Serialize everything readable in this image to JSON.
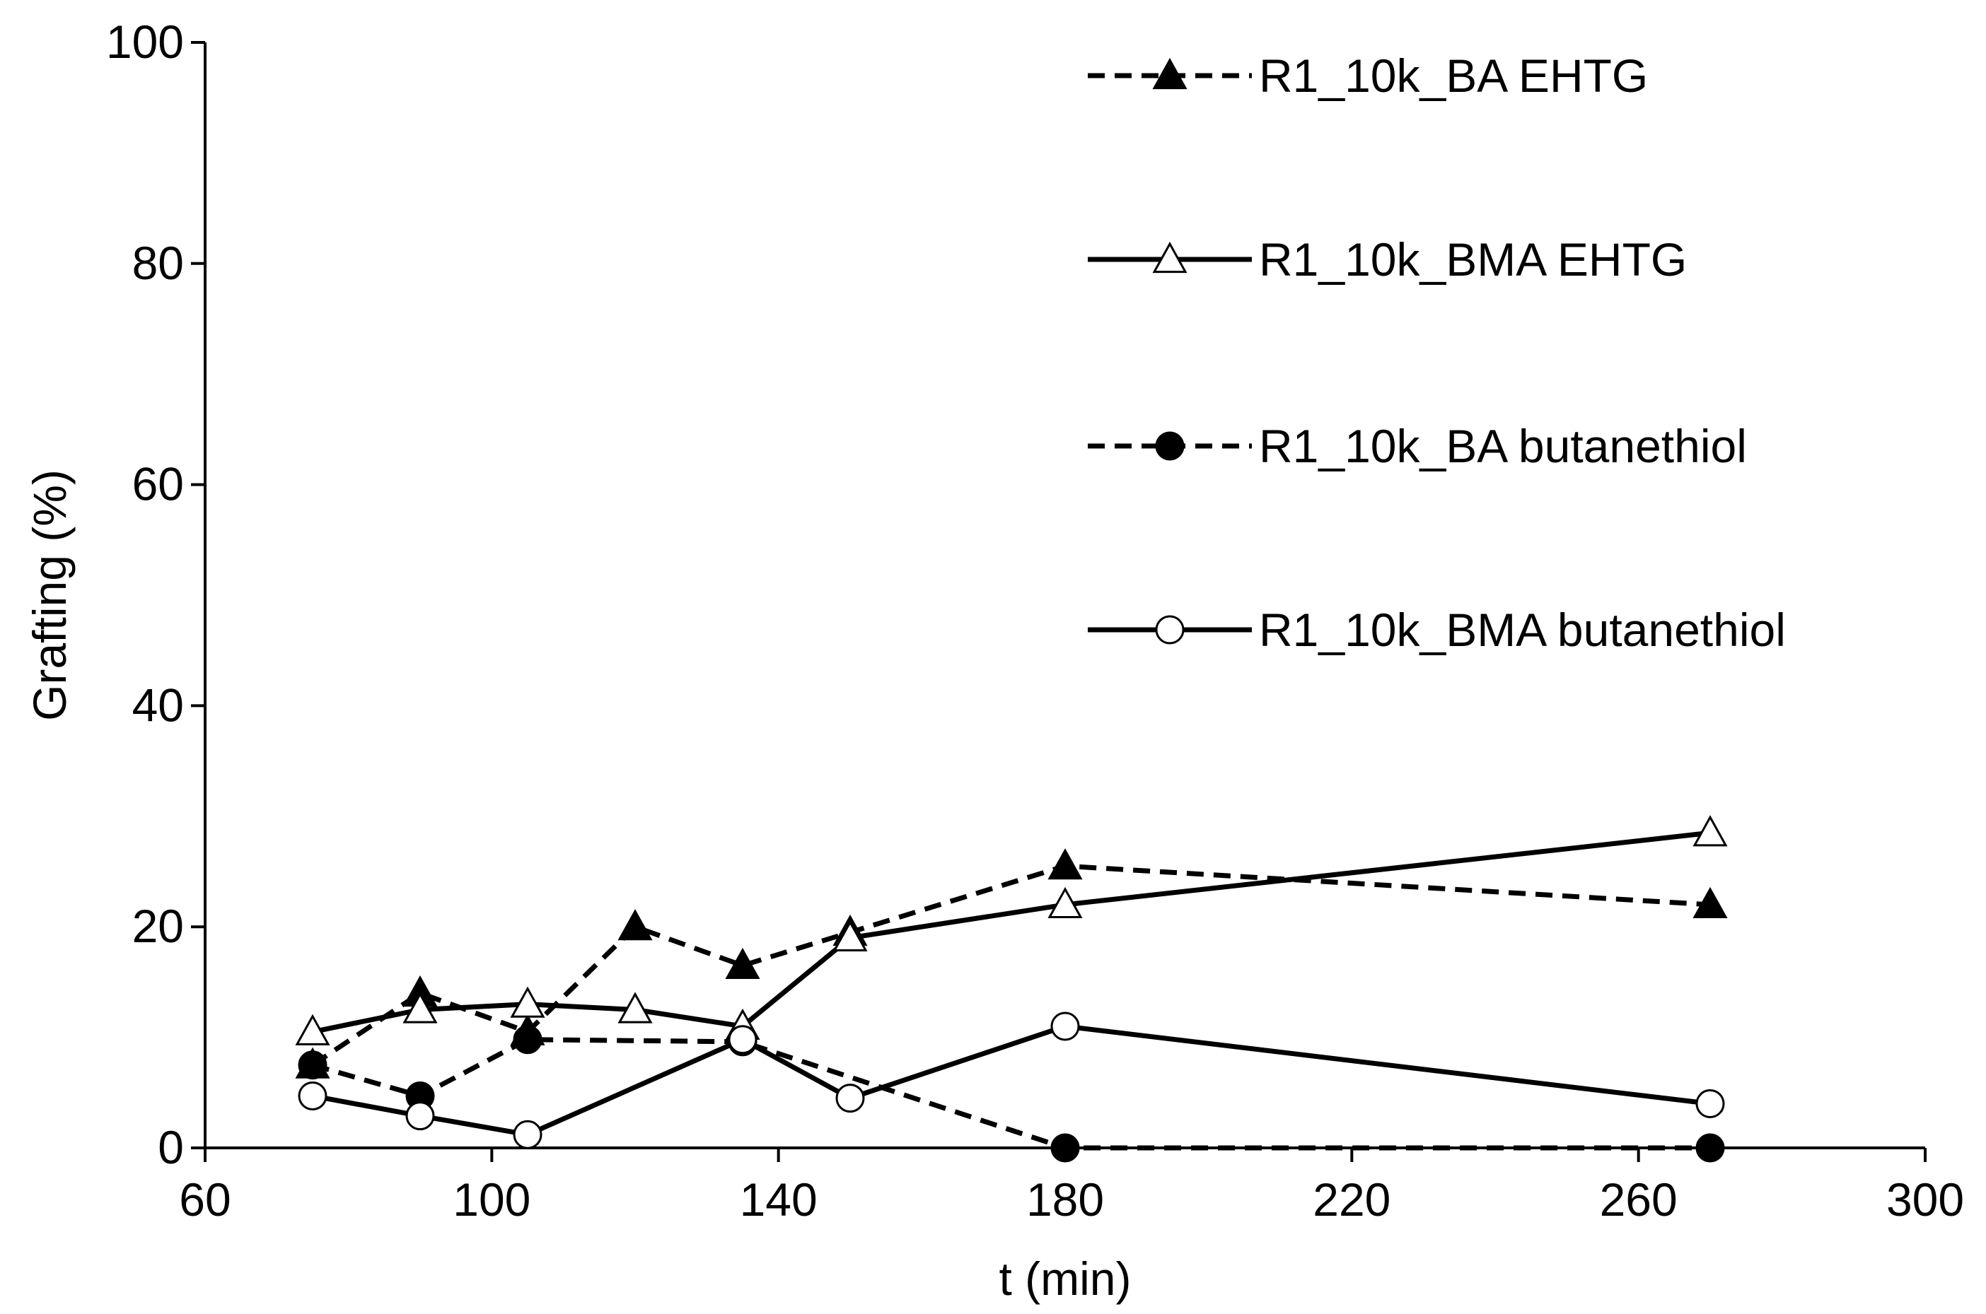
{
  "chart_data": {
    "type": "line",
    "title": "",
    "xlabel": "t (min)",
    "ylabel": "Grafting (%)",
    "xlim": [
      60,
      300
    ],
    "ylim": [
      0,
      100
    ],
    "xticks": [
      60,
      100,
      140,
      180,
      220,
      260,
      300
    ],
    "yticks": [
      0,
      20,
      40,
      60,
      80,
      100
    ],
    "xtick_labels": [
      "60",
      "100",
      "140",
      "180",
      "220",
      "260",
      "300"
    ],
    "ytick_labels": [
      "0",
      "20",
      "40",
      "60",
      "80",
      "100"
    ],
    "grid": false,
    "legend_position": "top-right",
    "series": [
      {
        "name": "R1_10k_BA EHTG",
        "line_style": "dashed",
        "marker": "triangle-filled",
        "color": "#000000",
        "x": [
          75,
          90,
          105,
          120,
          135,
          150,
          180,
          270
        ],
        "y": [
          7.5,
          14.0,
          10.5,
          20.0,
          16.5,
          19.5,
          25.5,
          22.0
        ]
      },
      {
        "name": "R1_10k_BMA EHTG",
        "line_style": "solid",
        "marker": "triangle-open",
        "color": "#000000",
        "x": [
          75,
          90,
          105,
          120,
          135,
          150,
          180,
          270
        ],
        "y": [
          10.5,
          12.5,
          13.0,
          12.5,
          11.0,
          19.0,
          22.0,
          28.5
        ]
      },
      {
        "name": "R1_10k_BA butanethiol",
        "line_style": "dashed",
        "marker": "circle-filled",
        "color": "#000000",
        "x": [
          75,
          90,
          105,
          135,
          180,
          270
        ],
        "y": [
          7.5,
          4.7,
          9.8,
          9.6,
          0.0,
          0.0
        ]
      },
      {
        "name": "R1_10k_BMA butanethiol",
        "line_style": "solid",
        "marker": "circle-open",
        "color": "#000000",
        "x": [
          75,
          90,
          105,
          135,
          150,
          180,
          270
        ],
        "y": [
          4.7,
          2.9,
          1.2,
          9.8,
          4.5,
          11.0,
          4.0
        ]
      }
    ]
  }
}
